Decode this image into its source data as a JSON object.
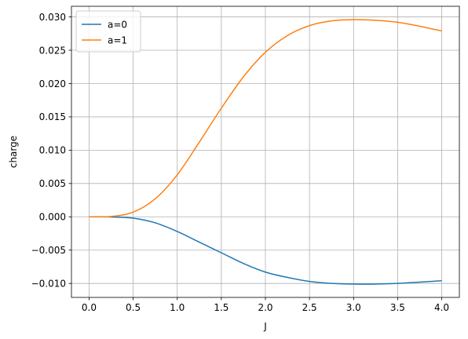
{
  "chart_data": {
    "type": "line",
    "title": "",
    "xlabel": "J",
    "ylabel": "charge",
    "xlim": [
      -0.2,
      4.2
    ],
    "ylim": [
      -0.0121,
      0.0316
    ],
    "grid": true,
    "legend_position": "upper-left",
    "xticks": [
      0.0,
      0.5,
      1.0,
      1.5,
      2.0,
      2.5,
      3.0,
      3.5,
      4.0
    ],
    "xtick_labels": [
      "0.0",
      "0.5",
      "1.0",
      "1.5",
      "2.0",
      "2.5",
      "3.0",
      "3.5",
      "4.0"
    ],
    "yticks": [
      -0.01,
      -0.005,
      0.0,
      0.005,
      0.01,
      0.015,
      0.02,
      0.025,
      0.03
    ],
    "ytick_labels": [
      "−0.010",
      "−0.005",
      "0.000",
      "0.005",
      "0.010",
      "0.015",
      "0.020",
      "0.025",
      "0.030"
    ],
    "series": [
      {
        "name": "a=0",
        "color": "#1f77b4",
        "x": [
          0.0,
          0.25,
          0.5,
          0.75,
          1.0,
          1.25,
          1.5,
          1.75,
          2.0,
          2.25,
          2.5,
          2.75,
          3.0,
          3.25,
          3.5,
          3.75,
          4.0
        ],
        "y": [
          0.0,
          -2e-05,
          -0.0002,
          -0.0009,
          -0.0022,
          -0.0038,
          -0.0054,
          -0.007,
          -0.0083,
          -0.0091,
          -0.0097,
          -0.01,
          -0.0101,
          -0.0101,
          -0.01,
          -0.0098,
          -0.0096
        ]
      },
      {
        "name": "a=1",
        "color": "#ff7f0e",
        "x": [
          0.0,
          0.25,
          0.5,
          0.75,
          1.0,
          1.25,
          1.5,
          1.75,
          2.0,
          2.25,
          2.5,
          2.75,
          3.0,
          3.25,
          3.5,
          3.75,
          4.0
        ],
        "y": [
          0.0,
          5e-05,
          0.0007,
          0.0027,
          0.0063,
          0.0112,
          0.0163,
          0.021,
          0.0247,
          0.0272,
          0.0287,
          0.0294,
          0.0296,
          0.0295,
          0.0292,
          0.0286,
          0.0279
        ]
      }
    ]
  }
}
